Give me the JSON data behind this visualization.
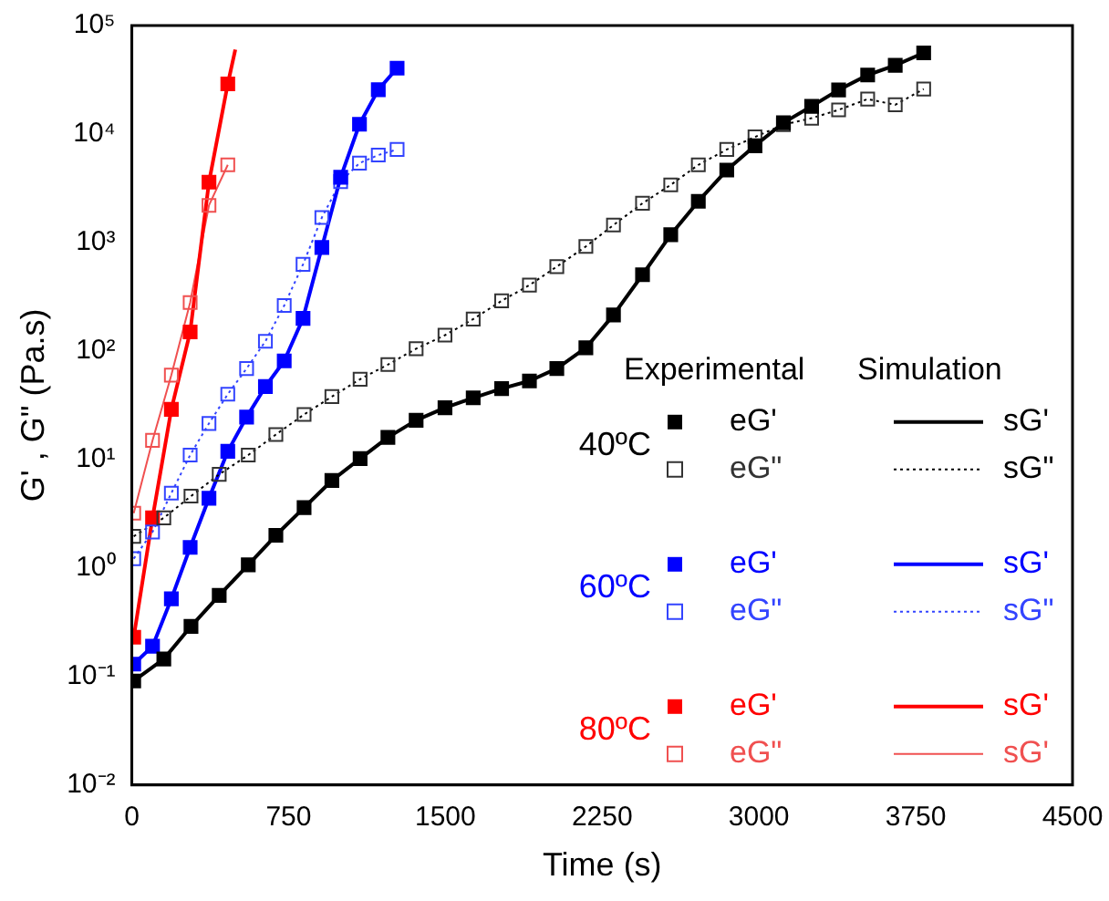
{
  "chart_data": {
    "type": "scatter",
    "xlabel": "Time (s)",
    "ylabel": "G' , G\" (Pa.s)",
    "xlim": [
      0,
      4500
    ],
    "xticks": [
      0,
      750,
      1500,
      2250,
      3000,
      3750,
      4500
    ],
    "ylim": [
      0.01,
      100000
    ],
    "yticks": [
      {
        "value": 0.01,
        "label": "10⁻²"
      },
      {
        "value": 0.1,
        "label": "10⁻¹"
      },
      {
        "value": 1,
        "label": "10⁰"
      },
      {
        "value": 10,
        "label": "10¹"
      },
      {
        "value": 100,
        "label": "10²"
      },
      {
        "value": 1000,
        "label": "10³"
      },
      {
        "value": 10000,
        "label": "10⁴"
      },
      {
        "value": 100000,
        "label": "10⁵"
      }
    ],
    "log": "y",
    "grid": false,
    "legend": "bottom right",
    "annotations": [
      "Experimental",
      "Simulation",
      "40ºC",
      "60ºC",
      "80ºC"
    ],
    "series": [
      {
        "name": "eG'",
        "color": "#000000",
        "type": "scatter",
        "marker": "square",
        "x": [
          9,
          153,
          283,
          418,
          557,
          689,
          824,
          957,
          1092,
          1225,
          1360,
          1498,
          1633,
          1769,
          1902,
          2033,
          2172,
          2304,
          2443,
          2578,
          2710,
          2846,
          2981,
          3117,
          3252,
          3381,
          3520,
          3652,
          3788
        ],
        "values": [
          0.091,
          0.145,
          0.29,
          0.56,
          1.07,
          2.0,
          3.6,
          6.4,
          10.2,
          16,
          23,
          30,
          37,
          45,
          53,
          69,
          107,
          215,
          505,
          1180,
          2400,
          4650,
          7800,
          12700,
          18000,
          25500,
          35000,
          43000,
          56000
        ]
      },
      {
        "name": "eG\"",
        "color": "#333333",
        "type": "scatter",
        "marker": "square",
        "x": [
          9,
          153,
          283,
          418,
          557,
          689,
          824,
          957,
          1092,
          1225,
          1360,
          1498,
          1633,
          1769,
          1902,
          2033,
          2172,
          2304,
          2443,
          2578,
          2710,
          2846,
          2981,
          3117,
          3252,
          3381,
          3520,
          3652,
          3788
        ],
        "values": [
          1.96,
          2.9,
          4.6,
          7.3,
          11,
          17,
          26,
          38,
          55,
          75,
          105,
          140,
          197,
          290,
          405,
          600,
          920,
          1450,
          2300,
          3400,
          5200,
          7200,
          9400,
          12200,
          14000,
          16700,
          21000,
          18600,
          26000
        ]
      },
      {
        "name": "sG'",
        "color": "#000000",
        "type": "line",
        "x": [
          9,
          153,
          283,
          418,
          557,
          689,
          824,
          957,
          1092,
          1225,
          1360,
          1498,
          1633,
          1769,
          1902,
          2033,
          2172,
          2304,
          2443,
          2578,
          2710,
          2846,
          2981,
          3117,
          3252,
          3381,
          3520,
          3652,
          3788
        ],
        "values": [
          0.091,
          0.145,
          0.29,
          0.56,
          1.07,
          2.0,
          3.6,
          6.4,
          10.2,
          16,
          23,
          30,
          37,
          45,
          53,
          69,
          107,
          215,
          505,
          1180,
          2400,
          4650,
          7800,
          12700,
          18000,
          25500,
          35000,
          43000,
          56000
        ]
      },
      {
        "name": "sG\"",
        "color": "#000000",
        "type": "line",
        "line_style": "dotted",
        "x": [
          9,
          153,
          283,
          418,
          557,
          689,
          824,
          957,
          1092,
          1225,
          1360,
          1498,
          1633,
          1769,
          1902,
          2033,
          2172,
          2304,
          2443,
          2578,
          2710,
          2846,
          2981,
          3117,
          3252,
          3381,
          3520,
          3652,
          3788
        ],
        "values": [
          1.96,
          2.9,
          4.6,
          7.3,
          11,
          17,
          26,
          38,
          55,
          75,
          105,
          140,
          197,
          290,
          405,
          600,
          920,
          1450,
          2300,
          3400,
          5200,
          7200,
          9400,
          12200,
          14000,
          16700,
          21000,
          18600,
          26000
        ]
      },
      {
        "name": "eG'",
        "color": "#0000ff",
        "type": "scatter",
        "marker": "square",
        "x": [
          9,
          99,
          189,
          279,
          369,
          459,
          549,
          639,
          729,
          819,
          909,
          999,
          1089,
          1179,
          1269
        ],
        "values": [
          0.13,
          0.19,
          0.52,
          1.55,
          4.4,
          11.9,
          24.6,
          47,
          81,
          200,
          900,
          4000,
          12300,
          25600,
          40500
        ]
      },
      {
        "name": "eG\"",
        "color": "#3344ff",
        "type": "scatter",
        "marker": "square",
        "x": [
          9,
          99,
          189,
          279,
          369,
          459,
          549,
          639,
          729,
          819,
          909,
          999,
          1089,
          1179,
          1269
        ],
        "values": [
          1.22,
          2.15,
          4.9,
          11,
          21.5,
          40,
          69,
          123,
          263,
          630,
          1700,
          3640,
          5400,
          6400,
          7200
        ]
      },
      {
        "name": "sG'",
        "color": "#0000ff",
        "type": "line",
        "x": [
          9,
          99,
          189,
          279,
          369,
          459,
          549,
          639,
          729,
          819,
          909,
          999,
          1089,
          1179,
          1269
        ],
        "values": [
          0.13,
          0.19,
          0.52,
          1.55,
          4.4,
          11.9,
          24.6,
          47,
          81,
          200,
          900,
          4000,
          12300,
          25600,
          40500
        ]
      },
      {
        "name": "sG\"",
        "color": "#3344ff",
        "type": "line",
        "line_style": "dotted",
        "x": [
          9,
          99,
          189,
          279,
          369,
          459,
          549,
          639,
          729,
          819,
          909,
          999,
          1089,
          1179,
          1269
        ],
        "values": [
          1.22,
          2.15,
          4.9,
          11,
          21.5,
          40,
          69,
          123,
          263,
          630,
          1700,
          3640,
          5400,
          6400,
          7200
        ]
      },
      {
        "name": "eG'",
        "color": "#ff0000",
        "type": "scatter",
        "marker": "square",
        "x": [
          9,
          99,
          189,
          279,
          369,
          459
        ],
        "values": [
          0.23,
          2.9,
          29,
          150,
          3600,
          29000
        ]
      },
      {
        "name": "eG\"",
        "color": "#f05050",
        "type": "scatter",
        "marker": "square",
        "x": [
          9,
          99,
          189,
          279,
          369,
          459
        ],
        "values": [
          3.2,
          15,
          60,
          280,
          2200,
          5200
        ]
      },
      {
        "name": "sG'",
        "color": "#ff0000",
        "type": "line",
        "x": [
          9,
          99,
          189,
          279,
          369,
          459,
          495
        ],
        "values": [
          0.23,
          2.9,
          29,
          150,
          3600,
          29000,
          60000
        ]
      },
      {
        "name": "sG'",
        "color": "#f05050",
        "type": "line",
        "x": [
          9,
          99,
          189,
          279,
          369,
          459
        ],
        "values": [
          3.2,
          15,
          60,
          280,
          2200,
          5200
        ]
      }
    ]
  }
}
